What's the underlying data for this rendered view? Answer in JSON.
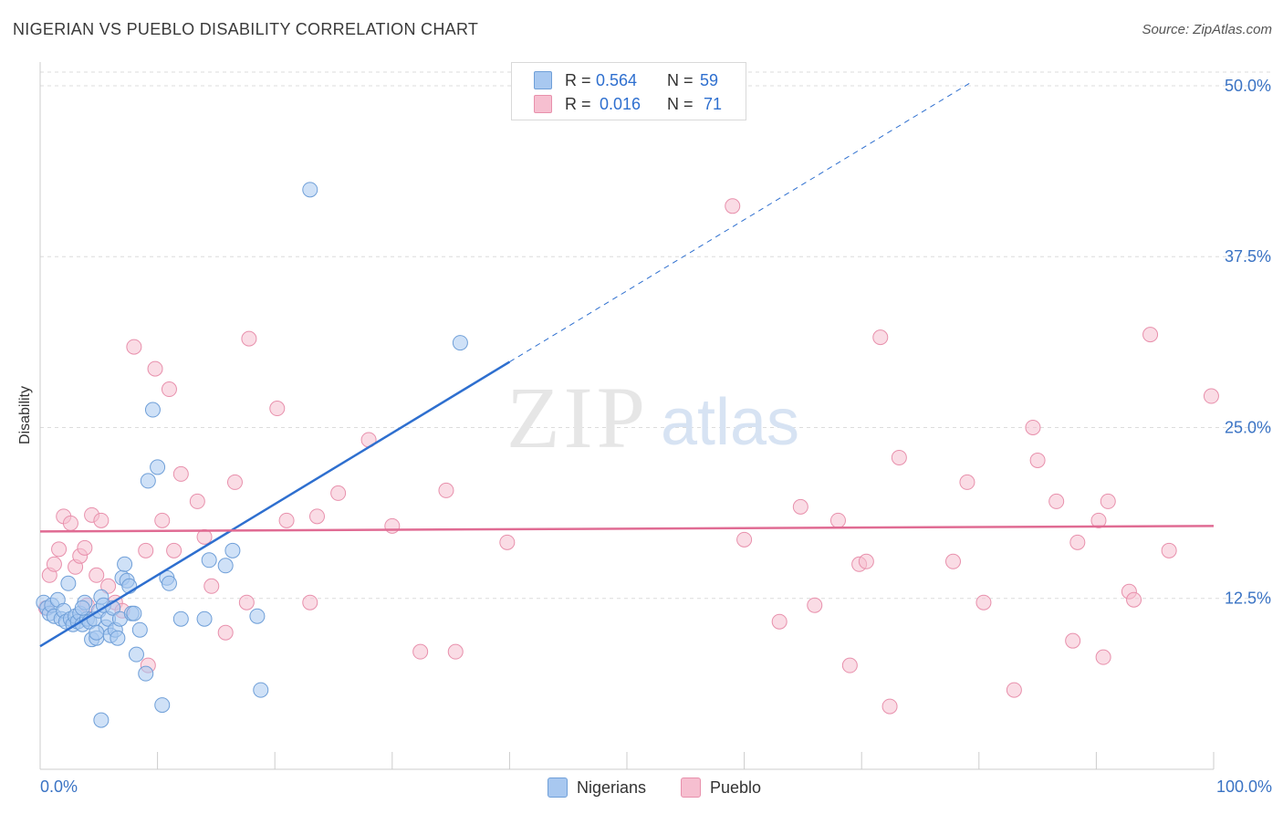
{
  "header": {
    "title": "NIGERIAN VS PUEBLO DISABILITY CORRELATION CHART",
    "source": "Source: ZipAtlas.com"
  },
  "watermark": {
    "zip": "ZIP",
    "atlas": "atlas"
  },
  "legend_top": {
    "rows": [
      {
        "r_label": "R =",
        "r_value": "0.564",
        "n_label": "N =",
        "n_value": "59"
      },
      {
        "r_label": "R =",
        "r_value": "0.016",
        "n_label": "N =",
        "n_value": "71"
      }
    ]
  },
  "colors": {
    "blue_fill": "#a8c8f0",
    "blue_stroke": "#6f9fd8",
    "blue_line": "#2e6fcf",
    "pink_fill": "#f6bfd0",
    "pink_stroke": "#e890ac",
    "pink_line": "#e06b93",
    "tick_text": "#3a73c4",
    "grid": "#dcdcdc"
  },
  "chart_data": {
    "type": "scatter",
    "title": "NIGERIAN VS PUEBLO DISABILITY CORRELATION CHART",
    "xlabel": "",
    "ylabel": "Disability",
    "xlim": [
      0,
      100
    ],
    "ylim": [
      0,
      51
    ],
    "x_tick_labels": [
      "0.0%",
      "100.0%"
    ],
    "y_ticks": [
      12.5,
      25.0,
      37.5,
      50.0
    ],
    "y_tick_labels": [
      "12.5%",
      "25.0%",
      "37.5%",
      "50.0%"
    ],
    "grid": true,
    "legend": "top-center",
    "series": [
      {
        "name": "Nigerians",
        "r": 0.564,
        "n": 59,
        "trend": {
          "x0": 0,
          "y0": 9.0,
          "x1": 40.0,
          "y1": 29.8,
          "dash_to_x": 79.5
        },
        "points": [
          [
            0.3,
            12.2
          ],
          [
            0.6,
            11.8
          ],
          [
            0.8,
            11.4
          ],
          [
            1.0,
            12.0
          ],
          [
            1.2,
            11.2
          ],
          [
            1.5,
            12.4
          ],
          [
            1.8,
            11.0
          ],
          [
            2.0,
            11.6
          ],
          [
            2.2,
            10.8
          ],
          [
            2.4,
            13.6
          ],
          [
            2.6,
            11.0
          ],
          [
            2.8,
            10.6
          ],
          [
            3.0,
            11.2
          ],
          [
            3.2,
            10.8
          ],
          [
            3.4,
            11.4
          ],
          [
            3.6,
            10.6
          ],
          [
            3.8,
            12.2
          ],
          [
            4.0,
            11.0
          ],
          [
            4.2,
            10.8
          ],
          [
            4.4,
            9.5
          ],
          [
            4.6,
            11.0
          ],
          [
            4.8,
            9.6
          ],
          [
            5.0,
            11.6
          ],
          [
            5.2,
            12.6
          ],
          [
            5.4,
            12.0
          ],
          [
            5.6,
            10.4
          ],
          [
            5.8,
            11.0
          ],
          [
            6.0,
            9.8
          ],
          [
            6.2,
            11.8
          ],
          [
            6.4,
            10.2
          ],
          [
            6.6,
            9.6
          ],
          [
            6.8,
            11.0
          ],
          [
            7.0,
            14.0
          ],
          [
            7.2,
            15.0
          ],
          [
            7.4,
            13.8
          ],
          [
            7.6,
            13.4
          ],
          [
            7.8,
            11.4
          ],
          [
            8.0,
            11.4
          ],
          [
            8.2,
            8.4
          ],
          [
            8.5,
            10.2
          ],
          [
            9.0,
            7.0
          ],
          [
            9.2,
            21.1
          ],
          [
            9.6,
            26.3
          ],
          [
            10.0,
            22.1
          ],
          [
            10.4,
            4.7
          ],
          [
            10.8,
            14.0
          ],
          [
            11.0,
            13.6
          ],
          [
            12.0,
            11.0
          ],
          [
            14.0,
            11.0
          ],
          [
            14.4,
            15.3
          ],
          [
            15.8,
            14.9
          ],
          [
            16.4,
            16.0
          ],
          [
            18.5,
            11.2
          ],
          [
            18.8,
            5.8
          ],
          [
            23.0,
            42.4
          ],
          [
            35.8,
            31.2
          ],
          [
            5.2,
            3.6
          ],
          [
            4.8,
            10.0
          ],
          [
            3.6,
            11.8
          ]
        ]
      },
      {
        "name": "Pueblo",
        "r": 0.016,
        "n": 71,
        "trend": {
          "x0": 0,
          "y0": 17.4,
          "x1": 100,
          "y1": 17.8
        },
        "points": [
          [
            0.5,
            11.8
          ],
          [
            0.8,
            14.2
          ],
          [
            1.2,
            15.0
          ],
          [
            1.6,
            16.1
          ],
          [
            2.0,
            18.5
          ],
          [
            2.6,
            18.0
          ],
          [
            3.0,
            14.8
          ],
          [
            3.4,
            15.6
          ],
          [
            3.8,
            16.2
          ],
          [
            4.0,
            12.0
          ],
          [
            4.4,
            18.6
          ],
          [
            4.8,
            14.2
          ],
          [
            5.2,
            18.2
          ],
          [
            5.8,
            13.4
          ],
          [
            6.4,
            12.2
          ],
          [
            7.0,
            11.6
          ],
          [
            8.0,
            30.9
          ],
          [
            9.0,
            16.0
          ],
          [
            9.2,
            7.6
          ],
          [
            9.8,
            29.3
          ],
          [
            10.4,
            18.2
          ],
          [
            11.0,
            27.8
          ],
          [
            11.4,
            16.0
          ],
          [
            12.0,
            21.6
          ],
          [
            13.4,
            19.6
          ],
          [
            14.0,
            17.0
          ],
          [
            14.6,
            13.4
          ],
          [
            15.8,
            10.0
          ],
          [
            16.6,
            21.0
          ],
          [
            17.6,
            12.2
          ],
          [
            17.8,
            31.5
          ],
          [
            20.2,
            26.4
          ],
          [
            21.0,
            18.2
          ],
          [
            23.0,
            12.2
          ],
          [
            23.6,
            18.5
          ],
          [
            25.4,
            20.2
          ],
          [
            28.0,
            24.1
          ],
          [
            30.0,
            17.8
          ],
          [
            32.4,
            8.6
          ],
          [
            34.6,
            20.4
          ],
          [
            35.4,
            8.6
          ],
          [
            39.8,
            16.6
          ],
          [
            59.0,
            41.2
          ],
          [
            60.0,
            16.8
          ],
          [
            63.0,
            10.8
          ],
          [
            64.8,
            19.2
          ],
          [
            66.0,
            12.0
          ],
          [
            68.0,
            18.2
          ],
          [
            69.0,
            7.6
          ],
          [
            69.8,
            15.0
          ],
          [
            70.4,
            15.2
          ],
          [
            71.6,
            31.6
          ],
          [
            72.4,
            4.6
          ],
          [
            73.2,
            22.8
          ],
          [
            77.8,
            15.2
          ],
          [
            79.0,
            21.0
          ],
          [
            80.4,
            12.2
          ],
          [
            83.0,
            5.8
          ],
          [
            84.6,
            25.0
          ],
          [
            85.0,
            22.6
          ],
          [
            86.6,
            19.6
          ],
          [
            88.0,
            9.4
          ],
          [
            88.4,
            16.6
          ],
          [
            90.2,
            18.2
          ],
          [
            90.6,
            8.2
          ],
          [
            91.0,
            19.6
          ],
          [
            92.8,
            13.0
          ],
          [
            93.2,
            12.4
          ],
          [
            94.6,
            31.8
          ],
          [
            96.2,
            16.0
          ],
          [
            99.8,
            27.3
          ]
        ]
      }
    ]
  },
  "legend_bottom": {
    "items": [
      "Nigerians",
      "Pueblo"
    ]
  },
  "axis": {
    "y_title": "Disability",
    "x_min_label": "0.0%",
    "x_max_label": "100.0%"
  }
}
